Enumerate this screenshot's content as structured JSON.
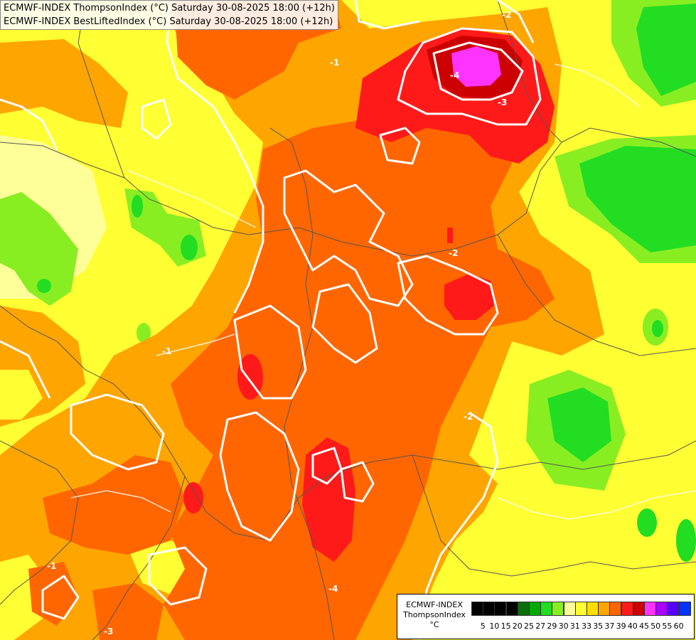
{
  "titles": {
    "line1": "ECMWF-INDEX ThompsonIndex (°C) Saturday 30-08-2025 18:00 (+12h)",
    "line2": "ECMWF-INDEX BestLiftedIndex (°C) Saturday 30-08-2025 18:00 (+12h)"
  },
  "legend": {
    "line1": "ECMWF-INDEX",
    "line2": "ThompsonIndex",
    "line3": "°C",
    "labels": [
      "5",
      "10",
      "15",
      "20",
      "25",
      "27",
      "29",
      "30",
      "31",
      "33",
      "35",
      "37",
      "39",
      "40",
      "45",
      "50",
      "55",
      "60"
    ],
    "colors": [
      "#000000",
      "#000000",
      "#000000",
      "#000000",
      "#0a6e0a",
      "#00aa00",
      "#22dd22",
      "#88ee22",
      "#ffff99",
      "#ffff33",
      "#ffdd00",
      "#ffa500",
      "#ff6600",
      "#ff1a1a",
      "#cc0000",
      "#ff33ff",
      "#aa00ff",
      "#5500ff",
      "#0033ff"
    ]
  },
  "contour_labels": [
    "-1",
    "-2",
    "-3",
    "-4"
  ],
  "colors": {
    "ti_29": "#22dd22",
    "ti_30": "#88ee22",
    "ti_31": "#ffff99",
    "ti_33": "#ffff33",
    "ti_35": "#ffa500",
    "ti_37": "#ff6600",
    "ti_39": "#ff1a1a",
    "ti_40": "#cc0000",
    "ti_45": "#ff33ff",
    "contour": "#ffffff",
    "border": "#555555"
  }
}
